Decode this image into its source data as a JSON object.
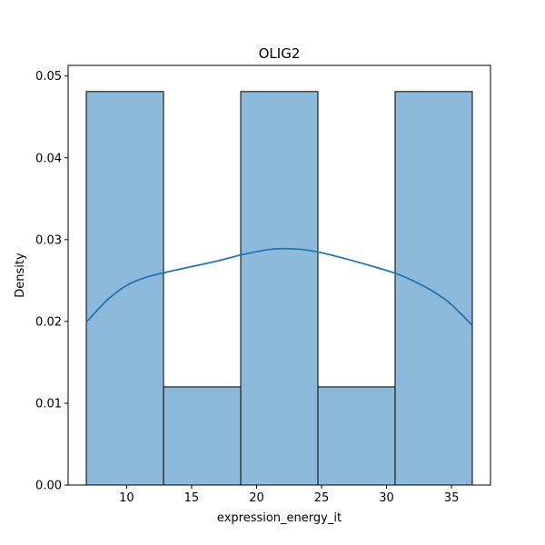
{
  "chart_data": {
    "type": "bar",
    "title": "OLIG2",
    "xlabel": "expression_energy_it",
    "ylabel": "Density",
    "xlim": [
      5.5,
      38.0
    ],
    "ylim": [
      0.0,
      0.0513
    ],
    "xticks": [
      10,
      15,
      20,
      25,
      30,
      35
    ],
    "yticks": [
      0.0,
      0.01,
      0.02,
      0.03,
      0.04,
      0.05
    ],
    "xtick_labels": [
      "10",
      "15",
      "20",
      "25",
      "30",
      "35"
    ],
    "ytick_labels": [
      "0.00",
      "0.01",
      "0.02",
      "0.03",
      "0.04",
      "0.05"
    ],
    "grid": false,
    "bars": [
      {
        "x0": 6.9,
        "x1": 12.84,
        "density": 0.0481
      },
      {
        "x0": 12.84,
        "x1": 18.78,
        "density": 0.012
      },
      {
        "x0": 18.78,
        "x1": 24.72,
        "density": 0.0481
      },
      {
        "x0": 24.72,
        "x1": 30.66,
        "density": 0.012
      },
      {
        "x0": 30.66,
        "x1": 36.6,
        "density": 0.0481
      }
    ],
    "kde": {
      "x": [
        6.9,
        8.5,
        10.0,
        11.5,
        13.0,
        15.0,
        17.0,
        19.0,
        21.0,
        22.2,
        23.5,
        25.0,
        27.0,
        29.0,
        31.0,
        33.0,
        34.5,
        35.5,
        36.6
      ],
      "y": [
        0.0199,
        0.0226,
        0.0244,
        0.0254,
        0.026,
        0.0267,
        0.0274,
        0.0282,
        0.0288,
        0.0289,
        0.0288,
        0.0284,
        0.0276,
        0.0267,
        0.0257,
        0.0242,
        0.0227,
        0.0213,
        0.0195
      ]
    },
    "colors": {
      "bar_fill": "#8db9da",
      "bar_edge": "#000000",
      "kde_line": "#1f77b4"
    }
  }
}
